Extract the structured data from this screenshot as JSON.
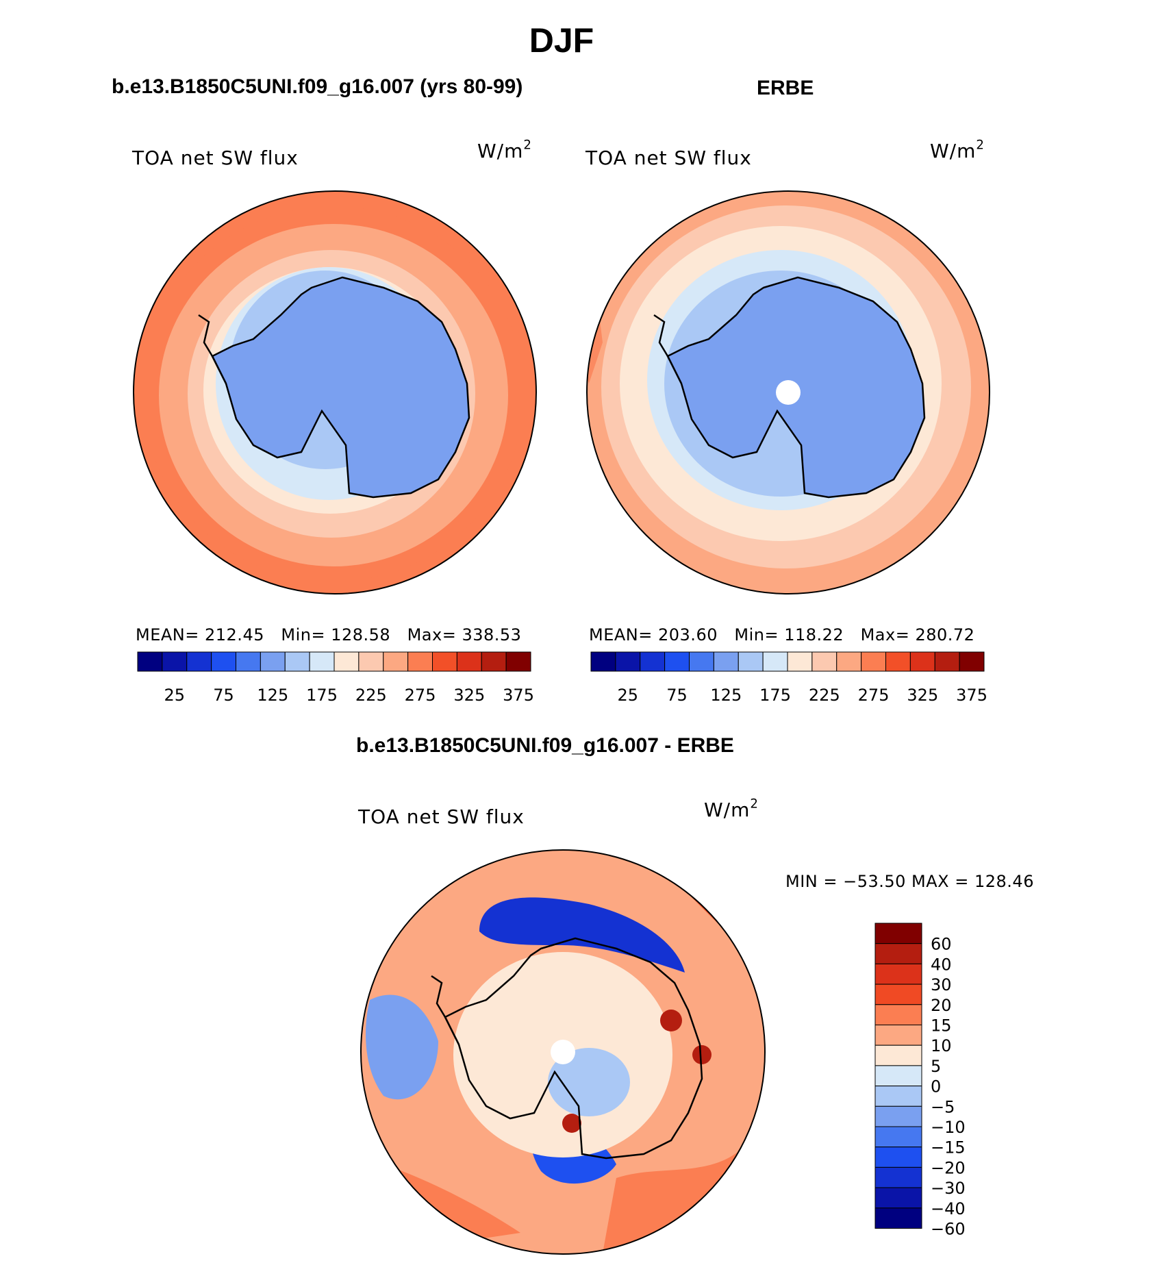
{
  "figure": {
    "season": "DJF",
    "panel_top_left_title": "b.e13.B1850C5UNI.f09_g16.007 (yrs 80-99)",
    "panel_top_right_title": "ERBE",
    "panel_bottom_title": "b.e13.B1850C5UNI.f09_g16.007 - ERBE"
  },
  "panels": {
    "model": {
      "variable": "TOA net SW flux",
      "units_base": "W/m",
      "units_exp": "2",
      "stats": {
        "mean_label": "MEAN=",
        "mean": "212.45",
        "min_label": "Min=",
        "min": "128.58",
        "max_label": "Max=",
        "max": "338.53"
      }
    },
    "obs": {
      "variable": "TOA net SW flux",
      "units_base": "W/m",
      "units_exp": "2",
      "stats": {
        "mean_label": "MEAN=",
        "mean": "203.60",
        "min_label": "Min=",
        "min": "118.22",
        "max_label": "Max=",
        "max": "280.72"
      }
    },
    "diff": {
      "variable": "TOA net SW flux",
      "units_base": "W/m",
      "units_exp": "2",
      "minmax_text": "MIN = −53.50 MAX = 128.46"
    }
  },
  "colorbars": {
    "abs_colors": [
      "#000080",
      "#0a14a8",
      "#1432d2",
      "#1e50f0",
      "#4678f0",
      "#7aa0f0",
      "#aac8f5",
      "#d6e8f8",
      "#fde8d6",
      "#fcc9b0",
      "#fca882",
      "#fb7e52",
      "#f25028",
      "#dc321a",
      "#b41e10",
      "#800000"
    ],
    "abs_ticks": [
      "25",
      "75",
      "125",
      "175",
      "225",
      "275",
      "325",
      "375"
    ],
    "diff_colors": [
      "#800000",
      "#b41e10",
      "#dc321a",
      "#f04a24",
      "#fb7e52",
      "#fca882",
      "#fde8d6",
      "#d6e8f8",
      "#aac8f5",
      "#7aa0f0",
      "#4678f0",
      "#1e50f0",
      "#1432d2",
      "#0a14a8",
      "#000080"
    ],
    "diff_ticks": [
      "60",
      "40",
      "30",
      "20",
      "15",
      "10",
      "5",
      "0",
      "−5",
      "−10",
      "−15",
      "−20",
      "−30",
      "−40",
      "−60"
    ]
  }
}
